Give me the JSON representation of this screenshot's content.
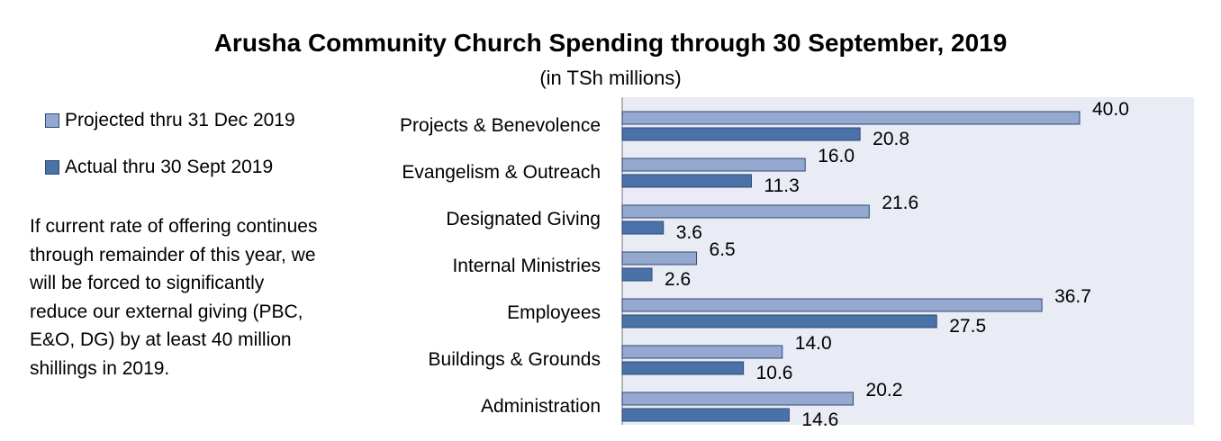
{
  "header": {
    "title": "Arusha Community Church Spending through 30 September, 2019",
    "subtitle": "(in TSh millions)"
  },
  "legend": {
    "items": [
      {
        "label": "Projected thru 31 Dec 2019",
        "color": "#95a8cf"
      },
      {
        "label": "Actual thru 30 Sept 2019",
        "color": "#4a72a8"
      }
    ]
  },
  "note": {
    "text": "If current rate of offering continues through remainder of this year, we will be forced to significantly reduce our external giving (PBC, E&O, DG) by at least 40 million shillings in 2019."
  },
  "chart_data": {
    "type": "bar",
    "orientation": "horizontal",
    "categories": [
      "Projects & Benevolence",
      "Evangelism & Outreach",
      "Designated Giving",
      "Internal Ministries",
      "Employees",
      "Buildings & Grounds",
      "Administration"
    ],
    "series": [
      {
        "name": "Projected thru 31 Dec 2019",
        "color": "#95a8cf",
        "values": [
          40.0,
          16.0,
          21.6,
          6.5,
          36.7,
          14.0,
          20.2
        ],
        "labels": [
          "40.0",
          "16.0",
          "21.6",
          "6.5",
          "36.7",
          "14.0",
          "20.2"
        ]
      },
      {
        "name": "Actual thru 30 Sept 2019",
        "color": "#4a72a8",
        "values": [
          20.8,
          11.3,
          3.6,
          2.6,
          27.5,
          10.6,
          14.6
        ],
        "labels": [
          "20.8",
          "11.3",
          "3.6",
          "2.6",
          "27.5",
          "10.6",
          "14.6"
        ]
      }
    ],
    "xlim": [
      0,
      50
    ],
    "plot_background": "#e9ecf5",
    "grid": false,
    "legend_position": "left"
  }
}
